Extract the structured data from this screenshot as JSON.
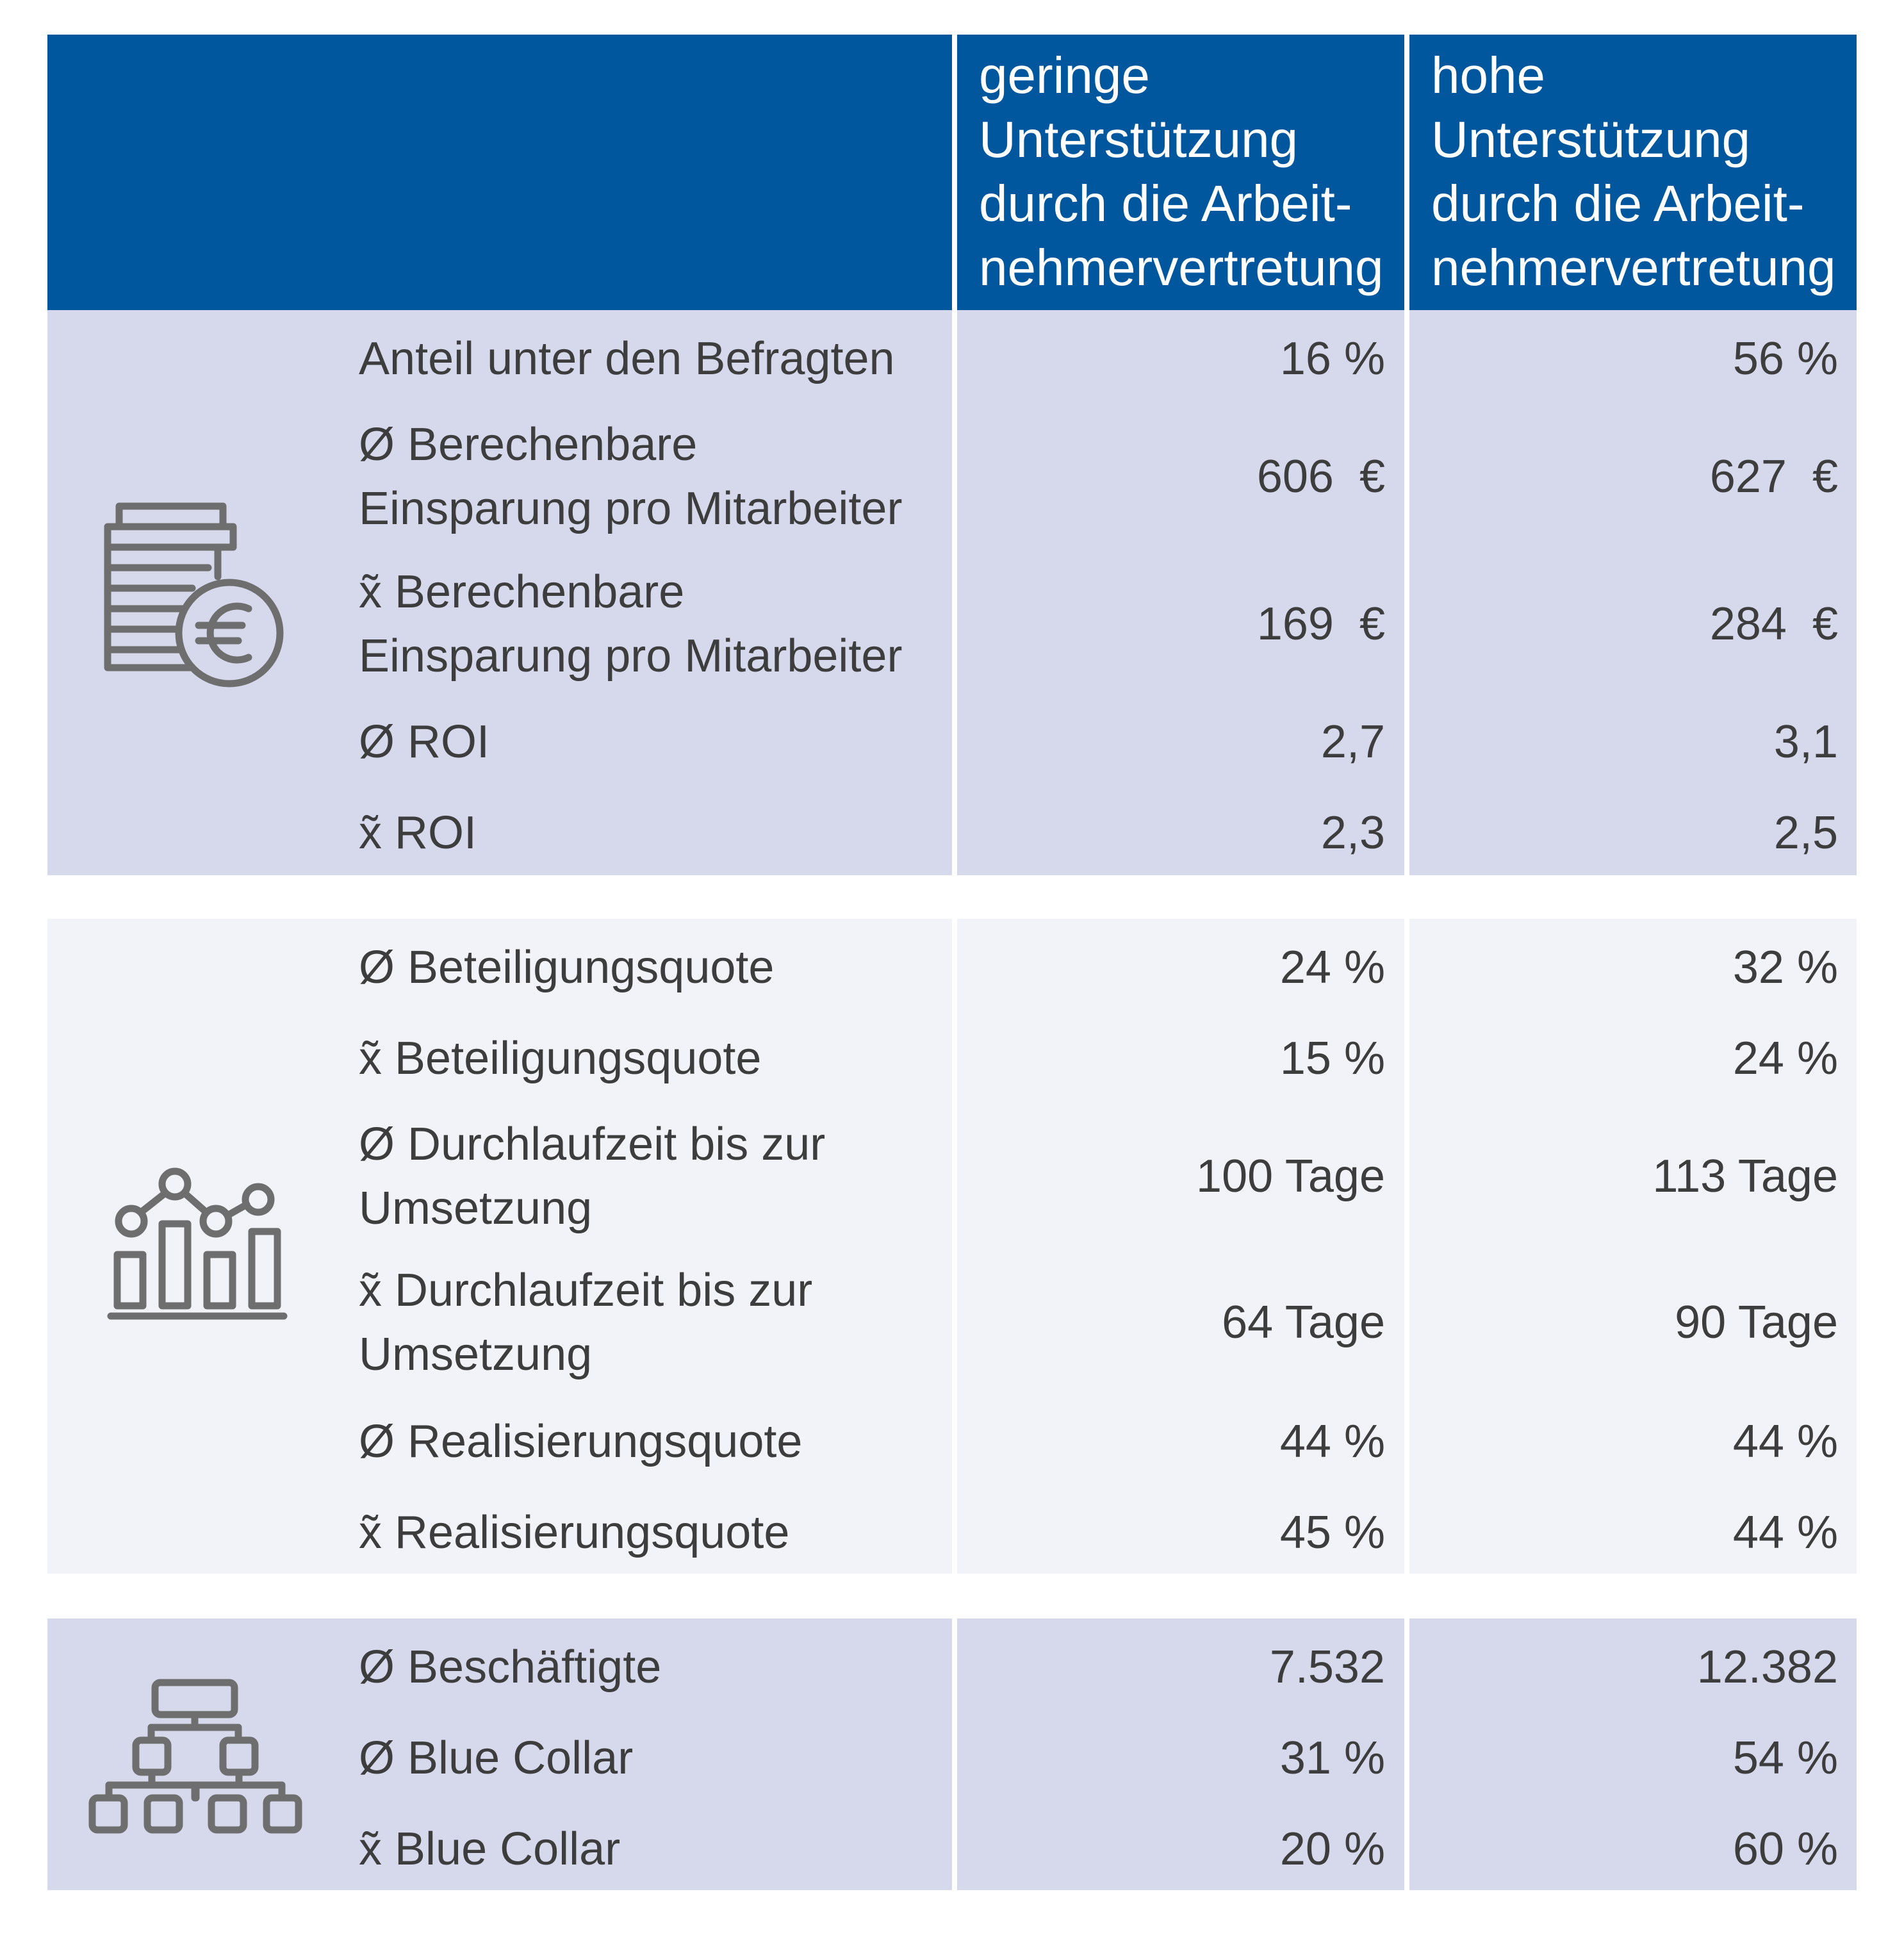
{
  "chart_data": {
    "type": "table",
    "columns": [
      "",
      "geringe\nUnterstützung\ndurch die Arbeit-\nnehmervertretung",
      "hohe\nUnterstützung\ndurch die Arbeit-\nnehmervertretung"
    ],
    "sections": [
      {
        "icon": "coins-euro-icon",
        "rows": [
          {
            "label": "Anteil unter den Befragten",
            "values": [
              "16 %",
              "56 %"
            ]
          },
          {
            "label": "Ø Berechenbare\nEinsparung pro Mitarbeiter",
            "values": [
              "606  €",
              "627  €"
            ]
          },
          {
            "label": "x̃  Berechenbare\nEinsparung pro Mitarbeiter",
            "values": [
              "169  €",
              "284  €"
            ]
          },
          {
            "label": "Ø ROI",
            "values": [
              "2,7",
              "3,1"
            ]
          },
          {
            "label": "x̃   ROI",
            "values": [
              "2,3",
              "2,5"
            ]
          }
        ]
      },
      {
        "icon": "bar-line-chart-icon",
        "rows": [
          {
            "label": "Ø Beteiligungsquote",
            "values": [
              "24 %",
              "32 %"
            ]
          },
          {
            "label": "x̃  Beteiligungsquote",
            "values": [
              "15 %",
              "24 %"
            ]
          },
          {
            "label": "Ø Durchlaufzeit bis zur\nUmsetzung",
            "values": [
              "100 Tage",
              "113 Tage"
            ]
          },
          {
            "label": "x̃  Durchlaufzeit bis zur\nUmsetzung",
            "values": [
              "64 Tage",
              "90 Tage"
            ]
          },
          {
            "label": "Ø Realisierungsquote",
            "values": [
              "44 %",
              "44 %"
            ]
          },
          {
            "label": "x̃   Realisierungsquote",
            "values": [
              "45 %",
              "44 %"
            ]
          }
        ]
      },
      {
        "icon": "org-chart-icon",
        "rows": [
          {
            "label": "Ø Beschäftigte",
            "values": [
              "7.532",
              "12.382"
            ]
          },
          {
            "label": "Ø Blue Collar",
            "values": [
              "31 %",
              "54 %"
            ]
          },
          {
            "label": "x̃  Blue Collar",
            "values": [
              "20 %",
              "60 %"
            ]
          }
        ]
      }
    ]
  },
  "colors": {
    "header": "#00579e",
    "section_dark": "#d5d9eb",
    "section_light": "#f1f3f9",
    "icon": "#6e6e6e",
    "text": "#3d3d3d"
  }
}
